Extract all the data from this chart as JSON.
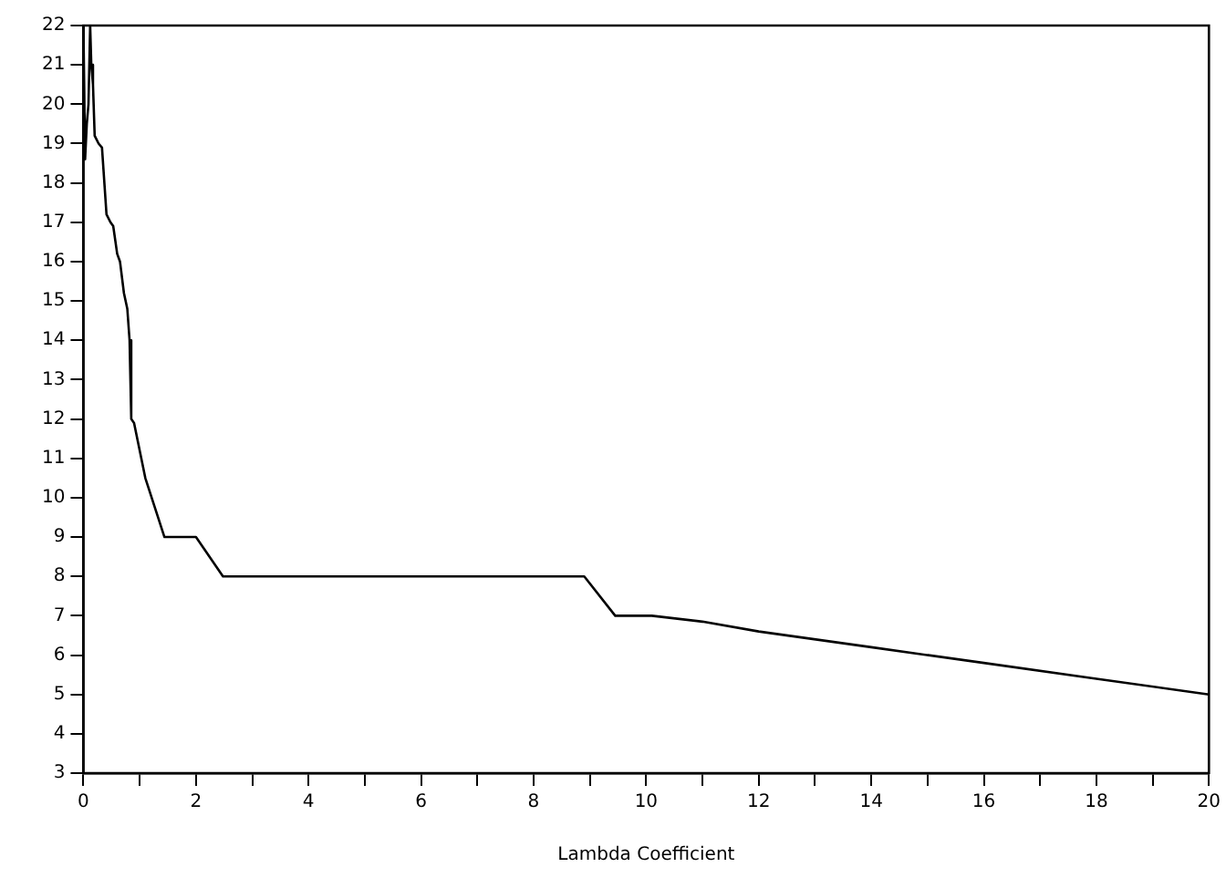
{
  "chart_data": {
    "type": "line",
    "xlabel": "Lambda Coefficient",
    "x": [
      0,
      0.03,
      0.06,
      0.09,
      0.12,
      0.14,
      0.17,
      0.2,
      0.27,
      0.33,
      0.41,
      0.48,
      0.53,
      0.6,
      0.65,
      0.72,
      0.78,
      0.82,
      0.85,
      0.9,
      1.1,
      1.44,
      2.0,
      2.48,
      4,
      6,
      8,
      8.9,
      9.45,
      10.1,
      11,
      12,
      14,
      16,
      18,
      20
    ],
    "series": [
      {
        "color": "#000000",
        "values": [
          22,
          18.6,
          19.5,
          20,
          22,
          21,
          20.5,
          19.2,
          19,
          18.9,
          17.2,
          17,
          16.9,
          16.2,
          16,
          15.2,
          14.8,
          14,
          12,
          11.9,
          10.5,
          9,
          9,
          8,
          8,
          8,
          8,
          8,
          7,
          7,
          6.85,
          6.6,
          6.2,
          5.8,
          5.4,
          5
        ]
      }
    ],
    "xlim": [
      0,
      20
    ],
    "xticks": [
      0,
      {
        "value": 1,
        "label": null
      },
      2,
      {
        "value": 3,
        "label": null
      },
      4,
      {
        "value": 5,
        "label": null
      },
      6,
      {
        "value": 7,
        "label": null
      },
      8,
      {
        "value": 9,
        "label": null
      },
      10,
      {
        "value": 11,
        "label": null
      },
      12,
      {
        "value": 13,
        "label": null
      },
      14,
      {
        "value": 15,
        "label": null
      },
      16,
      {
        "value": 17,
        "label": null
      },
      18,
      {
        "value": 19,
        "label": null
      },
      20
    ],
    "ylim": [
      3,
      22
    ],
    "yticks": [
      3,
      4,
      5,
      6,
      7,
      8,
      9,
      10,
      11,
      12,
      13,
      14,
      15,
      16,
      17,
      18,
      19,
      20,
      21,
      22
    ],
    "grid": false,
    "legend": false,
    "marker": "none",
    "line_style": "solid"
  }
}
